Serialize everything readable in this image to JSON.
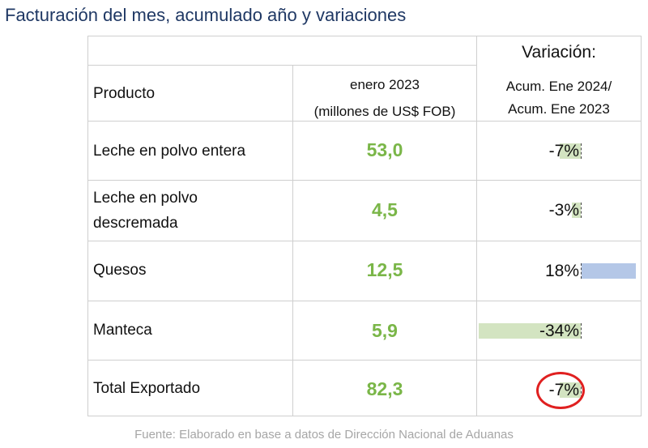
{
  "title": "Facturación del mes, acumulado año y variaciones",
  "header": {
    "product": "Producto",
    "period_line1": "enero 2023",
    "period_line2": "(millones de US$ FOB)",
    "variation_title": "Variación:",
    "variation_line1": "Acum. Ene 2024/",
    "variation_line2": "Acum. Ene 2023"
  },
  "rows": [
    {
      "product_line1": "Leche en polvo entera",
      "product_line2": "",
      "value": "53,0",
      "variation": "-7%",
      "variation_value": -7
    },
    {
      "product_line1": "Leche en polvo",
      "product_line2": "descremada",
      "value": "4,5",
      "variation": "-3%",
      "variation_value": -3
    },
    {
      "product_line1": "Quesos",
      "product_line2": "",
      "value": "12,5",
      "variation": "18%",
      "variation_value": 18
    },
    {
      "product_line1": "Manteca",
      "product_line2": "",
      "value": "5,9",
      "variation": "-34%",
      "variation_value": -34
    },
    {
      "product_line1": "Total Exportado",
      "product_line2": "",
      "value": "82,3",
      "variation": "-7%",
      "variation_value": -7
    }
  ],
  "colors": {
    "title": "#1f3864",
    "value_text": "#7ab648",
    "negative_bar": "#d3e4c1",
    "positive_bar": "#b4c7e7",
    "highlight_ring": "#e02020"
  },
  "highlight_icon": "red-circle-highlight",
  "source": "Fuente: Elaborado en base a datos de Dirección Nacional de Aduanas"
}
